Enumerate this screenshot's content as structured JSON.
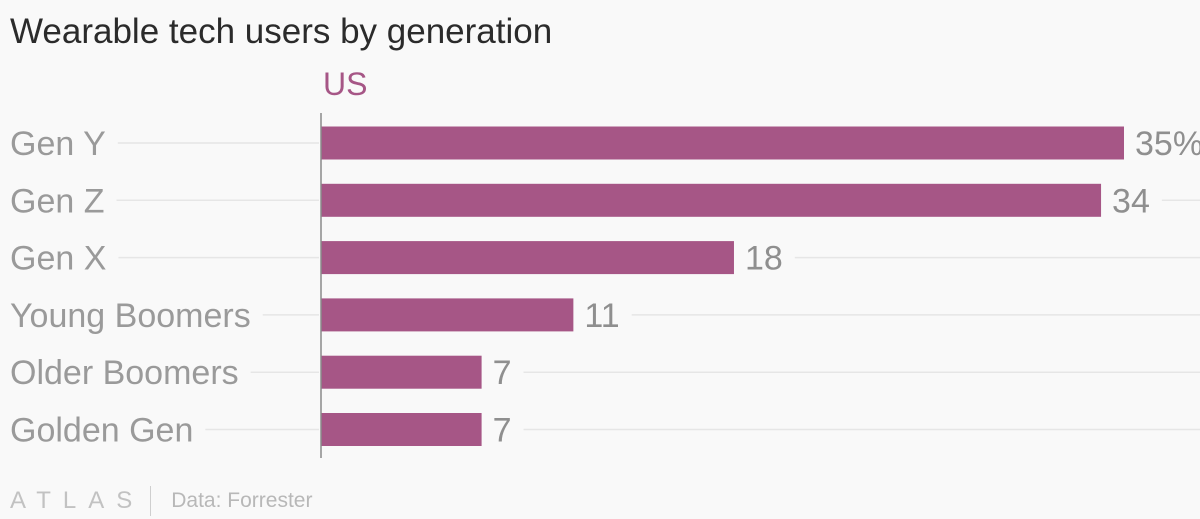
{
  "title": "Wearable tech users by generation",
  "footer": {
    "logo": "ATLAS",
    "source": "Data: Forrester"
  },
  "colors": {
    "bar": "#a65686",
    "series_label": "#a65686",
    "category_text": "#9a9a9a",
    "value_text": "#8f8f8f",
    "grid": "#e6e6e6",
    "axis": "#8a8a8a"
  },
  "chart_data": {
    "type": "bar",
    "orientation": "horizontal",
    "title": "Wearable tech users by generation",
    "series": [
      {
        "name": "US",
        "values": [
          35,
          34,
          18,
          11,
          7,
          7
        ]
      }
    ],
    "categories": [
      "Gen Y",
      "Gen Z",
      "Gen X",
      "Young Boomers",
      "Older Boomers",
      "Golden Gen"
    ],
    "value_labels": [
      "35%",
      "34",
      "18",
      "11",
      "7",
      "7"
    ],
    "xlim": [
      0,
      35
    ],
    "xlabel": "",
    "ylabel": "",
    "grid": true,
    "source": "Data: Forrester"
  }
}
